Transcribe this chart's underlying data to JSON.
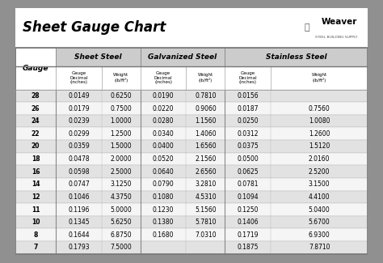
{
  "title": "Sheet Gauge Chart",
  "bg_outer": "#909090",
  "bg_white": "#ffffff",
  "bg_title": "#ffffff",
  "bg_header_section": "#cccccc",
  "bg_header_sub": "#ffffff",
  "bg_row_odd": "#e2e2e2",
  "bg_row_even": "#f5f5f5",
  "gauges": [
    28,
    26,
    24,
    22,
    20,
    18,
    16,
    14,
    12,
    11,
    10,
    8,
    7
  ],
  "sheet_steel_decimal": [
    "0.0149",
    "0.0179",
    "0.0239",
    "0.0299",
    "0.0359",
    "0.0478",
    "0.0598",
    "0.0747",
    "0.1046",
    "0.1196",
    "0.1345",
    "0.1644",
    "0.1793"
  ],
  "sheet_steel_weight": [
    "0.6250",
    "0.7500",
    "1.0000",
    "1.2500",
    "1.5000",
    "2.0000",
    "2.5000",
    "3.1250",
    "4.3750",
    "5.0000",
    "5.6250",
    "6.8750",
    "7.5000"
  ],
  "galv_decimal": [
    "0.0190",
    "0.0220",
    "0.0280",
    "0.0340",
    "0.0400",
    "0.0520",
    "0.0640",
    "0.0790",
    "0.1080",
    "0.1230",
    "0.1380",
    "0.1680",
    ""
  ],
  "galv_weight": [
    "0.7810",
    "0.9060",
    "1.1560",
    "1.4060",
    "1.6560",
    "2.1560",
    "2.6560",
    "3.2810",
    "4.5310",
    "5.1560",
    "5.7810",
    "7.0310",
    ""
  ],
  "ss_decimal": [
    "0.0156",
    "0.0187",
    "0.0250",
    "0.0312",
    "0.0375",
    "0.0500",
    "0.0625",
    "0.0781",
    "0.1094",
    "0.1250",
    "0.1406",
    "0.1719",
    "0.1875"
  ],
  "ss_weight": [
    "",
    "0.7560",
    "1.0080",
    "1.2600",
    "1.5120",
    "2.0160",
    "2.5200",
    "3.1500",
    "4.4100",
    "5.0400",
    "5.6700",
    "6.9300",
    "7.8710"
  ],
  "figw": 4.74,
  "figh": 3.25,
  "dpi": 100
}
